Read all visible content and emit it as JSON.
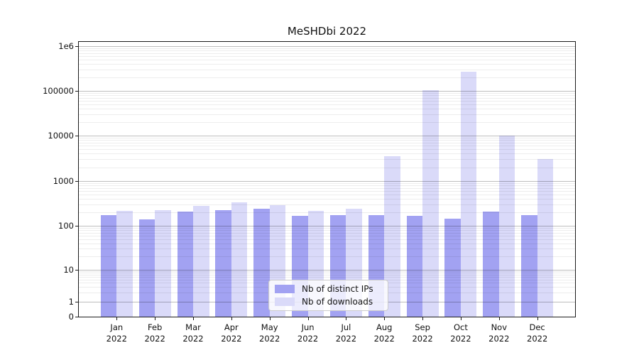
{
  "chart_data": {
    "type": "bar",
    "title": "MeSHDbi 2022",
    "categories": [
      "Jan 2022",
      "Feb 2022",
      "Mar 2022",
      "Apr 2022",
      "May 2022",
      "Jun 2022",
      "Jul 2022",
      "Aug 2022",
      "Sep 2022",
      "Oct 2022",
      "Nov 2022",
      "Dec 2022"
    ],
    "series": [
      {
        "name": "Nb of distinct IPs",
        "color": "#a2a2f2",
        "values": [
          170,
          138,
          210,
          222,
          237,
          164,
          172,
          172,
          165,
          143,
          208,
          173
        ]
      },
      {
        "name": "Nb of downloads",
        "color": "#dadaf9",
        "values": [
          218,
          225,
          278,
          330,
          282,
          215,
          240,
          3500,
          105000,
          270000,
          10000,
          3000
        ]
      }
    ],
    "xlabel": "",
    "ylabel": "",
    "y_scale": "log-with-zero",
    "y_ticks": [
      {
        "value": 0,
        "label": "0"
      },
      {
        "value": 1,
        "label": "1"
      },
      {
        "value": 10,
        "label": "10"
      },
      {
        "value": 100,
        "label": "100"
      },
      {
        "value": 1000,
        "label": "1000"
      },
      {
        "value": 10000,
        "label": "10000"
      },
      {
        "value": 100000,
        "label": "100000"
      },
      {
        "value": 1000000,
        "label": "1e6"
      }
    ],
    "ylim": [
      0,
      1270000
    ],
    "grid": "horizontal major+minor",
    "legend_position": "lower center"
  }
}
